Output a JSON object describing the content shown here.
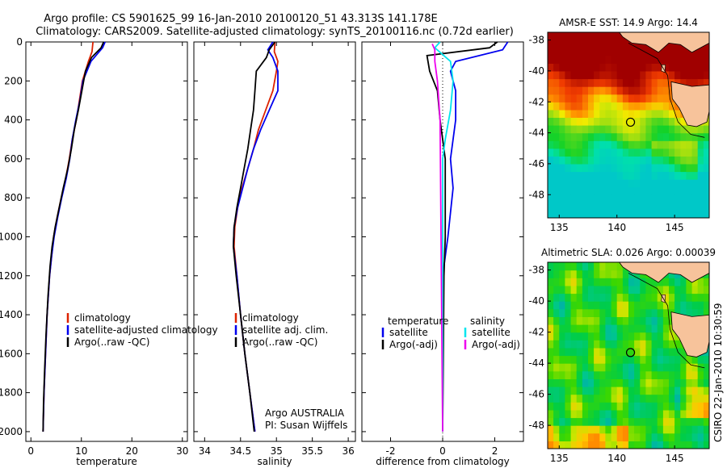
{
  "header": {
    "line1": "Argo profile: CS 5901625_99 16-Jan-2010 20100120_51 43.313S 141.178E",
    "line2": "Climatology: CARS2009. Satellite-adjusted climatology: synTS_20100116.nc (0.72d earlier)"
  },
  "side_note": "CSIRO 22-Jan-2010 10:30:59",
  "colors": {
    "climatology": "#dd2200",
    "satellite": "#0000ee",
    "argo": "#000000",
    "sat_salinity": "#00e5ee",
    "argo_salinity": "#ee00ee",
    "land": "#f7c39b"
  },
  "chart_data": [
    {
      "type": "line",
      "xlabel": "temperature",
      "xlim": [
        -1,
        31
      ],
      "ylim": [
        0,
        2050
      ],
      "y_inverted": true,
      "xticks": [
        0,
        10,
        20,
        30
      ],
      "yticks": [
        0,
        200,
        400,
        600,
        800,
        1000,
        1200,
        1400,
        1600,
        1800,
        2000
      ],
      "legend": {
        "placement": "bottom-right",
        "entries": [
          "climatology",
          "satellite-adjusted climatology",
          "Argo(..raw -QC)"
        ]
      },
      "series": [
        {
          "name": "climatology",
          "color": "#dd2200",
          "points": [
            [
              12.3,
              0
            ],
            [
              12.1,
              50
            ],
            [
              11.4,
              100
            ],
            [
              10.2,
              200
            ],
            [
              9.6,
              300
            ],
            [
              9.0,
              400
            ],
            [
              8.2,
              500
            ],
            [
              7.6,
              600
            ],
            [
              6.9,
              700
            ],
            [
              6.0,
              800
            ],
            [
              5.2,
              900
            ],
            [
              4.5,
              1000
            ],
            [
              4.1,
              1100
            ],
            [
              3.7,
              1200
            ],
            [
              3.2,
              1400
            ],
            [
              2.9,
              1600
            ],
            [
              2.6,
              1800
            ],
            [
              2.4,
              2000
            ]
          ]
        },
        {
          "name": "satellite-adjusted climatology",
          "color": "#0000ee",
          "points": [
            [
              14.7,
              0
            ],
            [
              14.2,
              30
            ],
            [
              11.9,
              100
            ],
            [
              10.3,
              200
            ],
            [
              9.7,
              300
            ],
            [
              8.9,
              400
            ],
            [
              8.2,
              500
            ],
            [
              7.7,
              600
            ],
            [
              7.0,
              700
            ],
            [
              6.1,
              800
            ],
            [
              5.3,
              900
            ],
            [
              4.6,
              1000
            ],
            [
              4.1,
              1100
            ],
            [
              3.7,
              1200
            ],
            [
              3.2,
              1400
            ],
            [
              2.9,
              1600
            ],
            [
              2.6,
              1800
            ],
            [
              2.4,
              2000
            ]
          ]
        },
        {
          "name": "Argo(..raw -QC)",
          "color": "#000000",
          "points": [
            [
              14.4,
              0
            ],
            [
              13.9,
              30
            ],
            [
              12.0,
              80
            ],
            [
              10.8,
              150
            ],
            [
              10.1,
              250
            ],
            [
              9.4,
              350
            ],
            [
              8.6,
              450
            ],
            [
              8.0,
              550
            ],
            [
              7.3,
              650
            ],
            [
              6.4,
              750
            ],
            [
              5.6,
              850
            ],
            [
              4.8,
              950
            ],
            [
              4.2,
              1050
            ],
            [
              3.8,
              1150
            ],
            [
              3.4,
              1300
            ],
            [
              3.0,
              1500
            ],
            [
              2.7,
              1700
            ],
            [
              2.5,
              1850
            ],
            [
              2.4,
              2000
            ]
          ]
        }
      ]
    },
    {
      "type": "line",
      "xlabel": "salinity",
      "xlim": [
        33.85,
        36.1
      ],
      "ylim": [
        0,
        2050
      ],
      "y_inverted": true,
      "xticks": [
        34,
        34.5,
        35,
        35.5,
        36
      ],
      "legend": {
        "placement": "bottom-right",
        "entries": [
          "climatology",
          "satellite adj. clim.",
          "Argo(..raw -QC)"
        ]
      },
      "annotation": [
        "Argo AUSTRALIA",
        "PI: Susan Wijffels"
      ],
      "series": [
        {
          "name": "climatology",
          "color": "#dd2200",
          "points": [
            [
              34.98,
              0
            ],
            [
              34.97,
              50
            ],
            [
              35.02,
              100
            ],
            [
              35.0,
              150
            ],
            [
              34.95,
              250
            ],
            [
              34.85,
              350
            ],
            [
              34.75,
              450
            ],
            [
              34.68,
              550
            ],
            [
              34.6,
              650
            ],
            [
              34.52,
              750
            ],
            [
              34.46,
              850
            ],
            [
              34.42,
              950
            ],
            [
              34.41,
              1050
            ],
            [
              34.45,
              1200
            ],
            [
              34.5,
              1400
            ],
            [
              34.56,
              1600
            ],
            [
              34.63,
              1800
            ],
            [
              34.7,
              2000
            ]
          ]
        },
        {
          "name": "satellite adj. clim.",
          "color": "#0000ee",
          "points": [
            [
              34.95,
              0
            ],
            [
              34.88,
              40
            ],
            [
              34.95,
              80
            ],
            [
              35.02,
              150
            ],
            [
              35.02,
              250
            ],
            [
              34.9,
              350
            ],
            [
              34.78,
              450
            ],
            [
              34.68,
              550
            ],
            [
              34.6,
              650
            ],
            [
              34.53,
              750
            ],
            [
              34.46,
              850
            ],
            [
              34.41,
              950
            ],
            [
              34.4,
              1050
            ],
            [
              34.45,
              1200
            ],
            [
              34.5,
              1400
            ],
            [
              34.56,
              1600
            ],
            [
              34.63,
              1800
            ],
            [
              34.7,
              2000
            ]
          ]
        },
        {
          "name": "Argo(..raw -QC)",
          "color": "#000000",
          "points": [
            [
              34.98,
              0
            ],
            [
              34.9,
              40
            ],
            [
              34.86,
              80
            ],
            [
              34.72,
              150
            ],
            [
              34.7,
              250
            ],
            [
              34.68,
              350
            ],
            [
              34.64,
              450
            ],
            [
              34.6,
              550
            ],
            [
              34.55,
              650
            ],
            [
              34.5,
              750
            ],
            [
              34.45,
              850
            ],
            [
              34.41,
              950
            ],
            [
              34.4,
              1050
            ],
            [
              34.44,
              1200
            ],
            [
              34.5,
              1400
            ],
            [
              34.56,
              1600
            ],
            [
              34.63,
              1800
            ],
            [
              34.69,
              2000
            ]
          ]
        }
      ]
    },
    {
      "type": "line",
      "xlabel": "difference from climatology",
      "xlim": [
        -3.1,
        3.1
      ],
      "ylim": [
        0,
        2050
      ],
      "y_inverted": true,
      "xticks": [
        -2,
        0,
        2
      ],
      "legend": {
        "placement": "bottom-left",
        "groups": [
          {
            "title": "temperature",
            "entries": [
              "satellite",
              "Argo(-adj)"
            ]
          },
          {
            "title": "salinity",
            "entries": [
              "satellite",
              "Argo(-adj)"
            ]
          }
        ]
      },
      "series": [
        {
          "name": "temperature satellite",
          "color": "#0000ee",
          "points": [
            [
              2.5,
              0
            ],
            [
              2.3,
              40
            ],
            [
              0.5,
              100
            ],
            [
              0.3,
              150
            ],
            [
              0.5,
              250
            ],
            [
              0.5,
              400
            ],
            [
              0.3,
              600
            ],
            [
              0.4,
              750
            ],
            [
              0.2,
              1000
            ],
            [
              0,
              1200
            ],
            [
              0,
              2000
            ]
          ]
        },
        {
          "name": "temperature Argo(-adj)",
          "color": "#000000",
          "points": [
            [
              2.1,
              0
            ],
            [
              1.8,
              30
            ],
            [
              -0.6,
              70
            ],
            [
              -0.5,
              150
            ],
            [
              -0.2,
              250
            ],
            [
              -0.1,
              400
            ],
            [
              0.1,
              600
            ],
            [
              0.1,
              800
            ],
            [
              0.1,
              1000
            ],
            [
              0.05,
              1200
            ],
            [
              0,
              2000
            ]
          ]
        },
        {
          "name": "salinity satellite",
          "color": "#00e5ee",
          "points": [
            [
              -0.1,
              0
            ],
            [
              -0.3,
              30
            ],
            [
              0.3,
              100
            ],
            [
              0.4,
              200
            ],
            [
              0.3,
              350
            ],
            [
              0.1,
              500
            ],
            [
              0,
              600
            ],
            [
              0,
              2000
            ]
          ]
        },
        {
          "name": "salinity Argo(-adj)",
          "color": "#ee00ee",
          "points": [
            [
              -0.4,
              10
            ],
            [
              -0.3,
              40
            ],
            [
              -0.3,
              100
            ],
            [
              -0.2,
              200
            ],
            [
              -0.1,
              400
            ],
            [
              0,
              2000
            ]
          ]
        }
      ]
    },
    {
      "type": "heatmap",
      "title": "AMSR-E SST: 14.9 Argo: 14.4",
      "xlim": [
        134,
        148
      ],
      "ylim": [
        -49.5,
        -37.5
      ],
      "xticks": [
        135,
        140,
        145
      ],
      "yticks": [
        -38,
        -40,
        -42,
        -44,
        -46,
        -48
      ],
      "marker": {
        "lon": 141.178,
        "lat": -43.313
      }
    },
    {
      "type": "heatmap",
      "title": "Altimetric SLA: 0.026 Argo: 0.00039",
      "xlim": [
        134,
        148
      ],
      "ylim": [
        -49.5,
        -37.5
      ],
      "xticks": [
        135,
        140,
        145
      ],
      "yticks": [
        -38,
        -40,
        -42,
        -44,
        -46,
        -48
      ],
      "marker": {
        "lon": 141.178,
        "lat": -43.313
      }
    }
  ]
}
